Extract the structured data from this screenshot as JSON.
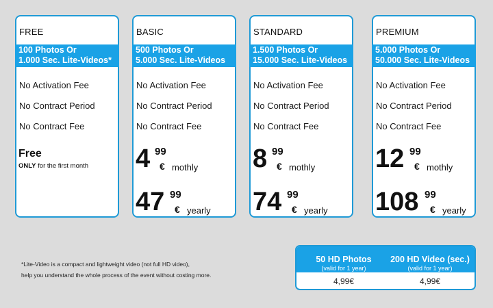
{
  "plans": [
    {
      "name": "FREE",
      "band_line1": "100 Photos Or",
      "band_line2": "1.000 Sec. Lite-Videos*",
      "features": [
        "No Activation Fee",
        "No Contract Period",
        "No Contract Fee"
      ],
      "free_title": "Free",
      "free_note_bold": "ONLY",
      "free_note_rest": " for the first month"
    },
    {
      "name": "BASIC",
      "band_line1": "500 Photos Or",
      "band_line2": "5.000 Sec. Lite-Videos",
      "features": [
        "No Activation Fee",
        "No Contract Period",
        "No Contract Fee"
      ],
      "monthly": {
        "whole": "4",
        "cents": "99",
        "currency": "€",
        "period": "mothly"
      },
      "yearly": {
        "whole": "47",
        "cents": "99",
        "currency": "€",
        "period": "yearly"
      }
    },
    {
      "name": "STANDARD",
      "band_line1": "1.500 Photos Or",
      "band_line2": "15.000 Sec. Lite-Videos",
      "features": [
        "No Activation Fee",
        "No Contract Period",
        "No Contract Fee"
      ],
      "monthly": {
        "whole": "8",
        "cents": "99",
        "currency": "€",
        "period": "mothly"
      },
      "yearly": {
        "whole": "74",
        "cents": "99",
        "currency": "€",
        "period": "yearly"
      }
    },
    {
      "name": "PREMIUM",
      "band_line1": "5.000 Photos Or",
      "band_line2": "50.000 Sec. Lite-Videos",
      "features": [
        "No Activation Fee",
        "No Contract Period",
        "No Contract Fee"
      ],
      "monthly": {
        "whole": "12",
        "cents": "99",
        "currency": "€",
        "period": "mothly"
      },
      "yearly": {
        "whole": "108",
        "cents": "99",
        "currency": "€",
        "period": "yearly"
      }
    }
  ],
  "footnote": {
    "line1": "*Lite-Video is a compact and lightweight video (not full HD video),",
    "line2": "help you understand the whole process of the event without costing more."
  },
  "addons": [
    {
      "title": "50 HD Photos",
      "subtitle": "(valid for 1 year)",
      "price": "4,99€"
    },
    {
      "title": "200 HD Video (sec.)",
      "subtitle": "(valid for 1 year)",
      "price": "4,99€"
    }
  ],
  "colors": {
    "accent": "#1aa2e6",
    "border": "#1f9ad6",
    "background": "#dcdcdc"
  }
}
